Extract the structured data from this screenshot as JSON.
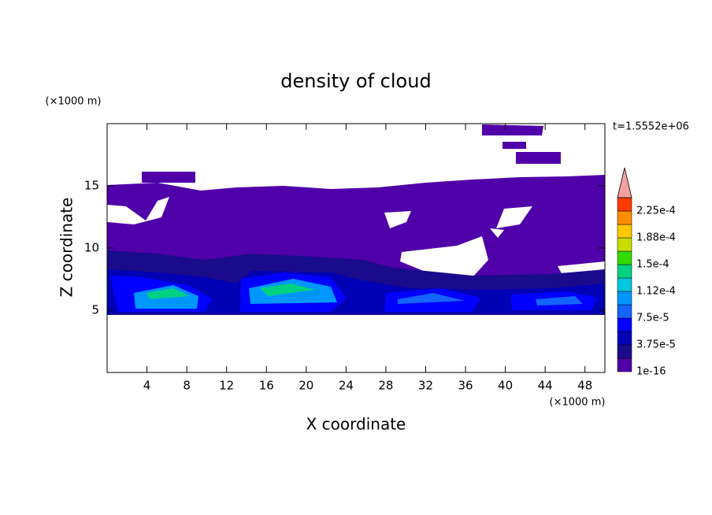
{
  "chart_data": {
    "type": "contour",
    "title": "density of cloud",
    "x_label": "X coordinate",
    "y_label": "Z coordinate",
    "x_unit": "(×1000 m)",
    "y_unit": "(×1000 m)",
    "annotation": "t=1.5552e+06",
    "xlim": [
      0,
      50
    ],
    "xticks": [
      4,
      8,
      12,
      16,
      20,
      24,
      28,
      32,
      36,
      40,
      44,
      48
    ],
    "ylim": [
      0,
      20
    ],
    "yticks": [
      5,
      10,
      15
    ],
    "colorbar": {
      "levels": [
        {
          "value": 1e-16,
          "label": "1e-16"
        },
        1.875e-05,
        {
          "value": 3.75e-05,
          "label": "3.75e-5"
        },
        5.625e-05,
        {
          "value": 7.5e-05,
          "label": "7.5e-5"
        },
        9.375e-05,
        {
          "value": 0.000112,
          "label": "1.12e-4"
        },
        0.00013125,
        {
          "value": 0.00015,
          "label": "1.5e-4"
        },
        0.00016875,
        {
          "value": 0.000188,
          "label": "1.88e-4"
        },
        0.00020625,
        {
          "value": 0.000225,
          "label": "2.25e-4"
        },
        0.00024375
      ],
      "colors": [
        "#5000a8",
        "#1a0a8c",
        "#0000b4",
        "#0000ff",
        "#1464ff",
        "#0096ff",
        "#00c8dc",
        "#00d282",
        "#32dc00",
        "#c8dc00",
        "#ffc800",
        "#ff8c00",
        "#ff3c00"
      ],
      "extend_color": "#f4a0a0"
    }
  }
}
